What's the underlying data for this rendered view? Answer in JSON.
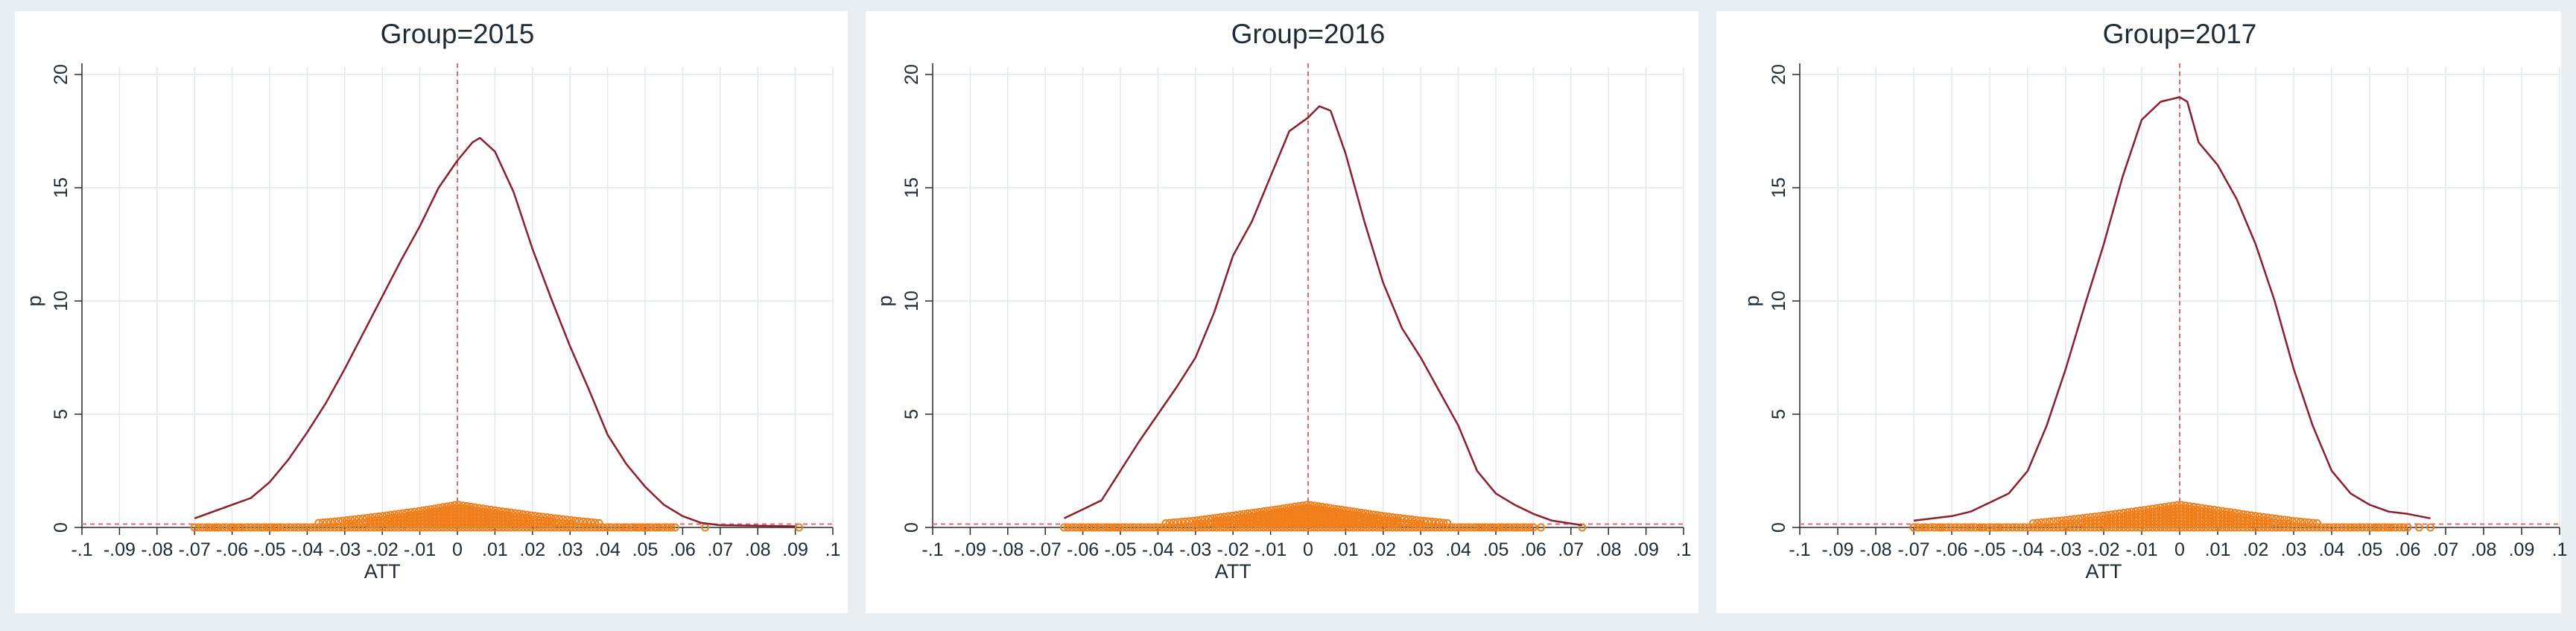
{
  "figure": {
    "background": "#e9eef2",
    "plot_background": "#ffffff"
  },
  "colors": {
    "density": "#8b1f2c",
    "points": "#f07f1b",
    "reference": "#e26a6a",
    "grid": "#e2e8ee",
    "axis": "#2b2b2b"
  },
  "chart_data": [
    {
      "type": "line",
      "title": "Group=2015",
      "xlabel": "ATT",
      "ylabel": "p",
      "xlim": [
        -0.1,
        0.1
      ],
      "ylim": [
        0,
        20
      ],
      "xticks": [
        "-.1",
        "-.09",
        "-.08",
        "-.07",
        "-.06",
        "-.05",
        "-.04",
        "-.03",
        "-.02",
        "-.01",
        "0",
        ".01",
        ".02",
        ".03",
        ".04",
        ".05",
        ".06",
        ".07",
        ".08",
        ".09",
        ".1"
      ],
      "yticks": [
        "0",
        "5",
        "10",
        "15",
        "20"
      ],
      "reference_lines": {
        "x": 0,
        "y": 0.15
      },
      "density": [
        [
          -0.07,
          0.4
        ],
        [
          -0.065,
          0.7
        ],
        [
          -0.06,
          1.0
        ],
        [
          -0.055,
          1.3
        ],
        [
          -0.05,
          2.0
        ],
        [
          -0.045,
          3.0
        ],
        [
          -0.04,
          4.2
        ],
        [
          -0.035,
          5.5
        ],
        [
          -0.03,
          7.0
        ],
        [
          -0.025,
          8.6
        ],
        [
          -0.02,
          10.2
        ],
        [
          -0.015,
          11.8
        ],
        [
          -0.01,
          13.3
        ],
        [
          -0.005,
          15.0
        ],
        [
          0.0,
          16.2
        ],
        [
          0.004,
          17.0
        ],
        [
          0.006,
          17.2
        ],
        [
          0.01,
          16.6
        ],
        [
          0.015,
          14.8
        ],
        [
          0.02,
          12.3
        ],
        [
          0.025,
          10.1
        ],
        [
          0.03,
          8.0
        ],
        [
          0.035,
          6.1
        ],
        [
          0.04,
          4.1
        ],
        [
          0.045,
          2.8
        ],
        [
          0.05,
          1.8
        ],
        [
          0.055,
          1.0
        ],
        [
          0.06,
          0.5
        ],
        [
          0.065,
          0.2
        ],
        [
          0.07,
          0.1
        ],
        [
          0.09,
          0.05
        ]
      ],
      "point_profile": [
        [
          -0.07,
          0.0
        ],
        [
          -0.06,
          0.02
        ],
        [
          -0.05,
          0.06
        ],
        [
          -0.04,
          0.15
        ],
        [
          -0.03,
          0.3
        ],
        [
          -0.02,
          0.5
        ],
        [
          -0.01,
          0.72
        ],
        [
          0.0,
          1.0
        ],
        [
          0.01,
          0.75
        ],
        [
          0.02,
          0.52
        ],
        [
          0.03,
          0.32
        ],
        [
          0.04,
          0.15
        ],
        [
          0.05,
          0.05
        ],
        [
          0.058,
          0.0
        ]
      ],
      "sparse_points": [
        -0.07,
        -0.066,
        -0.064,
        -0.06,
        -0.058,
        -0.055,
        -0.052,
        -0.05,
        -0.048,
        0.045,
        0.048,
        0.05,
        0.053,
        0.056,
        0.066,
        0.091
      ]
    },
    {
      "type": "line",
      "title": "Group=2016",
      "xlabel": "ATT",
      "ylabel": "p",
      "xlim": [
        -0.1,
        0.1
      ],
      "ylim": [
        0,
        20
      ],
      "xticks": [
        "-.1",
        "-.09",
        "-.08",
        "-.07",
        "-.06",
        "-.05",
        "-.04",
        "-.03",
        "-.02",
        "-.01",
        "0",
        ".01",
        ".02",
        ".03",
        ".04",
        ".05",
        ".06",
        ".07",
        ".08",
        ".09",
        ".1"
      ],
      "yticks": [
        "0",
        "5",
        "10",
        "15",
        "20"
      ],
      "reference_lines": {
        "x": 0,
        "y": 0.15
      },
      "density": [
        [
          -0.065,
          0.4
        ],
        [
          -0.06,
          0.8
        ],
        [
          -0.055,
          1.2
        ],
        [
          -0.05,
          2.5
        ],
        [
          -0.045,
          3.8
        ],
        [
          -0.04,
          5.0
        ],
        [
          -0.035,
          6.2
        ],
        [
          -0.03,
          7.5
        ],
        [
          -0.025,
          9.5
        ],
        [
          -0.02,
          12.0
        ],
        [
          -0.015,
          13.5
        ],
        [
          -0.01,
          15.5
        ],
        [
          -0.005,
          17.5
        ],
        [
          0.0,
          18.1
        ],
        [
          0.003,
          18.6
        ],
        [
          0.006,
          18.4
        ],
        [
          0.01,
          16.5
        ],
        [
          0.015,
          13.5
        ],
        [
          0.02,
          10.8
        ],
        [
          0.025,
          8.8
        ],
        [
          0.03,
          7.5
        ],
        [
          0.035,
          6.0
        ],
        [
          0.04,
          4.5
        ],
        [
          0.045,
          2.5
        ],
        [
          0.05,
          1.5
        ],
        [
          0.055,
          1.0
        ],
        [
          0.06,
          0.6
        ],
        [
          0.065,
          0.3
        ],
        [
          0.073,
          0.1
        ]
      ],
      "point_profile": [
        [
          -0.065,
          0.0
        ],
        [
          -0.06,
          0.02
        ],
        [
          -0.05,
          0.06
        ],
        [
          -0.04,
          0.15
        ],
        [
          -0.03,
          0.3
        ],
        [
          -0.02,
          0.52
        ],
        [
          -0.01,
          0.75
        ],
        [
          0.0,
          1.0
        ],
        [
          0.01,
          0.75
        ],
        [
          0.02,
          0.5
        ],
        [
          0.03,
          0.3
        ],
        [
          0.04,
          0.14
        ],
        [
          0.05,
          0.04
        ],
        [
          0.06,
          0.0
        ]
      ],
      "sparse_points": [
        -0.064,
        -0.06,
        -0.057,
        -0.053,
        -0.051,
        0.046,
        0.049,
        0.052,
        0.055,
        0.058,
        0.062,
        0.073
      ]
    },
    {
      "type": "line",
      "title": "Group=2017",
      "xlabel": "ATT",
      "ylabel": "p",
      "xlim": [
        -0.1,
        0.1
      ],
      "ylim": [
        0,
        20
      ],
      "xticks": [
        "-.1",
        "-.09",
        "-.08",
        "-.07",
        "-.06",
        "-.05",
        "-.04",
        "-.03",
        "-.02",
        "-.01",
        "0",
        ".01",
        ".02",
        ".03",
        ".04",
        ".05",
        ".06",
        ".07",
        ".08",
        ".09",
        ".1"
      ],
      "yticks": [
        "0",
        "5",
        "10",
        "15",
        "20"
      ],
      "reference_lines": {
        "x": 0,
        "y": 0.15
      },
      "density": [
        [
          -0.07,
          0.3
        ],
        [
          -0.06,
          0.5
        ],
        [
          -0.055,
          0.7
        ],
        [
          -0.05,
          1.1
        ],
        [
          -0.045,
          1.5
        ],
        [
          -0.04,
          2.5
        ],
        [
          -0.035,
          4.5
        ],
        [
          -0.03,
          7.0
        ],
        [
          -0.025,
          9.8
        ],
        [
          -0.02,
          12.5
        ],
        [
          -0.015,
          15.5
        ],
        [
          -0.01,
          18.0
        ],
        [
          -0.005,
          18.8
        ],
        [
          0.0,
          19.0
        ],
        [
          0.002,
          18.8
        ],
        [
          0.005,
          17.0
        ],
        [
          0.01,
          16.0
        ],
        [
          0.015,
          14.5
        ],
        [
          0.02,
          12.5
        ],
        [
          0.025,
          10.0
        ],
        [
          0.03,
          7.0
        ],
        [
          0.035,
          4.5
        ],
        [
          0.04,
          2.5
        ],
        [
          0.045,
          1.5
        ],
        [
          0.05,
          1.0
        ],
        [
          0.055,
          0.7
        ],
        [
          0.06,
          0.6
        ],
        [
          0.066,
          0.4
        ]
      ],
      "point_profile": [
        [
          -0.07,
          0.0
        ],
        [
          -0.06,
          0.02
        ],
        [
          -0.05,
          0.07
        ],
        [
          -0.04,
          0.16
        ],
        [
          -0.03,
          0.32
        ],
        [
          -0.02,
          0.52
        ],
        [
          -0.01,
          0.75
        ],
        [
          0.0,
          1.0
        ],
        [
          0.01,
          0.75
        ],
        [
          0.02,
          0.5
        ],
        [
          0.03,
          0.28
        ],
        [
          0.04,
          0.12
        ],
        [
          0.05,
          0.04
        ],
        [
          0.06,
          0.0
        ]
      ],
      "sparse_points": [
        -0.07,
        -0.067,
        -0.063,
        -0.055,
        -0.052,
        -0.048,
        0.045,
        0.048,
        0.052,
        0.055,
        0.059,
        0.063,
        0.066
      ]
    }
  ]
}
